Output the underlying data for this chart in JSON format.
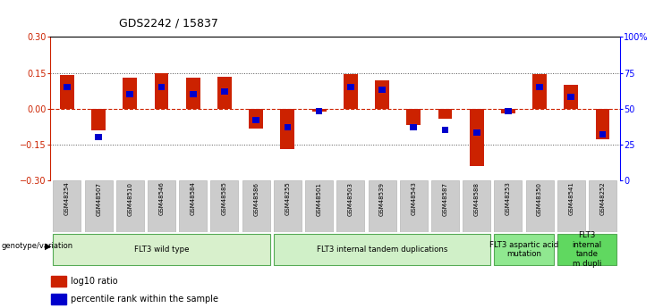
{
  "title": "GDS2242 / 15837",
  "samples": [
    "GSM48254",
    "GSM48507",
    "GSM48510",
    "GSM48546",
    "GSM48584",
    "GSM48585",
    "GSM48586",
    "GSM48255",
    "GSM48501",
    "GSM48503",
    "GSM48539",
    "GSM48543",
    "GSM48587",
    "GSM48588",
    "GSM48253",
    "GSM48350",
    "GSM48541",
    "GSM48252"
  ],
  "log10_ratio": [
    0.14,
    -0.09,
    0.13,
    0.15,
    0.13,
    0.135,
    -0.085,
    -0.17,
    -0.012,
    0.145,
    0.12,
    -0.07,
    -0.042,
    -0.24,
    -0.022,
    0.145,
    0.1,
    -0.13
  ],
  "percentile_rank": [
    65,
    30,
    60,
    65,
    60,
    62,
    42,
    37,
    48,
    65,
    63,
    37,
    35,
    33,
    48,
    65,
    58,
    32
  ],
  "groups": [
    {
      "label": "FLT3 wild type",
      "start": 0,
      "end": 6,
      "color": "#d8f0cc"
    },
    {
      "label": "FLT3 internal tandem duplications",
      "start": 7,
      "end": 13,
      "color": "#d0f0c8"
    },
    {
      "label": "FLT3 aspartic acid\nmutation",
      "start": 14,
      "end": 15,
      "color": "#90e890"
    },
    {
      "label": "FLT3\ninternal\ntande\nm dupli",
      "start": 16,
      "end": 17,
      "color": "#60d860"
    }
  ],
  "ylim": [
    -0.3,
    0.3
  ],
  "y2lim": [
    0,
    100
  ],
  "yticks_left": [
    -0.3,
    -0.15,
    0.0,
    0.15,
    0.3
  ],
  "yticks_right": [
    0,
    25,
    50,
    75,
    100
  ],
  "bar_color_red": "#cc2200",
  "bar_color_blue": "#0000cc",
  "hline_color": "#cc2200",
  "bg_color": "#ffffff",
  "legend_red_label": "log10 ratio",
  "legend_blue_label": "percentile rank within the sample",
  "genotype_label": "genotype/variation"
}
